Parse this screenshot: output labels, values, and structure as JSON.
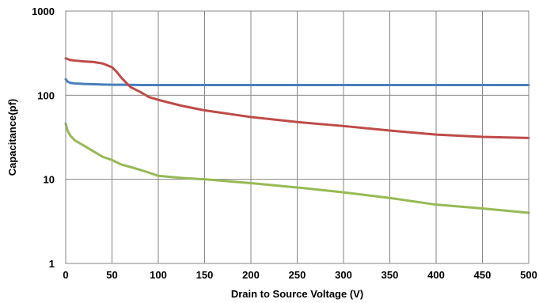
{
  "chart_data": {
    "type": "line",
    "title": "",
    "xlabel": "Drain to Source Voltage (V)",
    "ylabel": "Capacitance(pf)",
    "xlim": [
      0,
      500
    ],
    "ylim": [
      1,
      1000
    ],
    "yscale": "log",
    "grid": true,
    "legend": "none",
    "x_ticks": [
      "0",
      "50",
      "100",
      "150",
      "200",
      "250",
      "300",
      "350",
      "400",
      "450",
      "500"
    ],
    "y_ticks": [
      "1",
      "10",
      "100",
      "1000"
    ],
    "series": [
      {
        "color": "#4a7ebb",
        "x": [
          0,
          2,
          5,
          10,
          15,
          20,
          30,
          40,
          50,
          60,
          80,
          100,
          150,
          200,
          250,
          300,
          350,
          400,
          450,
          500
        ],
        "y": [
          155,
          145,
          140,
          138,
          137,
          136,
          135,
          134,
          133,
          133,
          132,
          132,
          132,
          132,
          132,
          132,
          132,
          132,
          132,
          132
        ]
      },
      {
        "color": "#be4b48",
        "x": [
          0,
          5,
          10,
          20,
          30,
          40,
          50,
          55,
          60,
          65,
          70,
          80,
          90,
          100,
          125,
          150,
          200,
          250,
          300,
          350,
          400,
          450,
          500
        ],
        "y": [
          275,
          262,
          258,
          252,
          248,
          238,
          215,
          190,
          162,
          142,
          125,
          110,
          95,
          88,
          75,
          66,
          55,
          48,
          43,
          38,
          34,
          32,
          31
        ]
      },
      {
        "color": "#98b954",
        "x": [
          0,
          2,
          5,
          10,
          20,
          30,
          40,
          50,
          60,
          70,
          80,
          90,
          100,
          125,
          150,
          200,
          250,
          300,
          350,
          400,
          450,
          500
        ],
        "y": [
          46,
          38,
          33,
          29,
          25,
          21.5,
          18.5,
          17,
          15,
          14,
          13,
          12,
          11,
          10.4,
          10,
          9,
          8,
          7,
          6,
          5,
          4.5,
          4
        ]
      }
    ]
  }
}
